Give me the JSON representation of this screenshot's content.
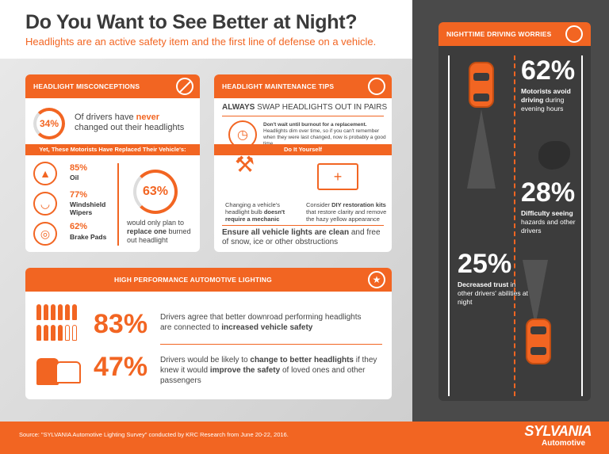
{
  "header": {
    "title": "Do You Want to See Better at Night?",
    "subtitle": "Headlights are an active safety item and the first line of defense on a vehicle."
  },
  "misconceptions": {
    "title": "HEADLIGHT MISCONCEPTIONS",
    "pct": "34%",
    "text_pre": "Of drivers have ",
    "text_bold": "never",
    "text_post": "changed out their headlights",
    "bar_label": "Yet, These Motorists Have Replaced Their Vehicle's:",
    "items": [
      {
        "pct": "85%",
        "label": "Oil",
        "icon": "oil-can-icon"
      },
      {
        "pct": "77%",
        "label": "Windshield Wipers",
        "icon": "wiper-icon"
      },
      {
        "pct": "62%",
        "label": "Brake Pads",
        "icon": "brake-icon"
      }
    ],
    "big_pct": "63%",
    "big_text_pre": "would only plan to",
    "big_text_bold": "replace one",
    "big_text_post": "burned out headlight"
  },
  "maintenance": {
    "title": "HEADLIGHT MAINTENANCE TIPS",
    "always_bold": "ALWAYS",
    "always_rest": "SWAP HEADLIGHTS OUT IN PAIRS",
    "wait_bold": "Don't wait until burnout for a replacement.",
    "wait_text": "Headlights dim over time, so if you can't remember when they were last changed, now is probably a good time",
    "diy_label": "Do It Yourself",
    "diy_left_pre": "Changing a vehicle's headlight bulb",
    "diy_left_bold": "doesn't require a mechanic",
    "diy_right_pre": "Consider",
    "diy_right_bold": "DIY restoration kits",
    "diy_right_post": "that restore clarity and remove the hazy yellow appearance",
    "ensure_bold": "Ensure all vehicle lights are clean",
    "ensure_rest": "and free of snow, ice or other obstructions"
  },
  "performance": {
    "title": "HIGH PERFORMANCE AUTOMOTIVE LIGHTING",
    "row1_pct": "83%",
    "row1_pre": "Drivers agree that better downroad performing headlights are connected to",
    "row1_bold": "increased vehicle safety",
    "row2_pct": "47%",
    "row2_pre": "Drivers would be likely to",
    "row2_bold1": "change to better headlights",
    "row2_mid": "if they knew it would",
    "row2_bold2": "improve the safety",
    "row2_post": "of loved ones and other passengers"
  },
  "nighttime": {
    "title": "NIGHTTIME DRIVING WORRIES",
    "stats": [
      {
        "pct": "62%",
        "bold": "Motorists avoid driving",
        "rest": "during evening hours"
      },
      {
        "pct": "28%",
        "bold": "Difficulty seeing",
        "rest": "hazards and other drivers"
      },
      {
        "pct": "25%",
        "bold": "Decreased trust",
        "rest": "in other drivers' abilities at night"
      }
    ]
  },
  "footer": {
    "source": "Source: \"SYLVANIA Automotive Lighting Survey\" conducted by KRC Research from June 20-22, 2016.",
    "brand": "SYLVANIA",
    "brand_sub": "Automotive"
  },
  "colors": {
    "accent": "#F26522",
    "dark": "#3c3c3c"
  }
}
